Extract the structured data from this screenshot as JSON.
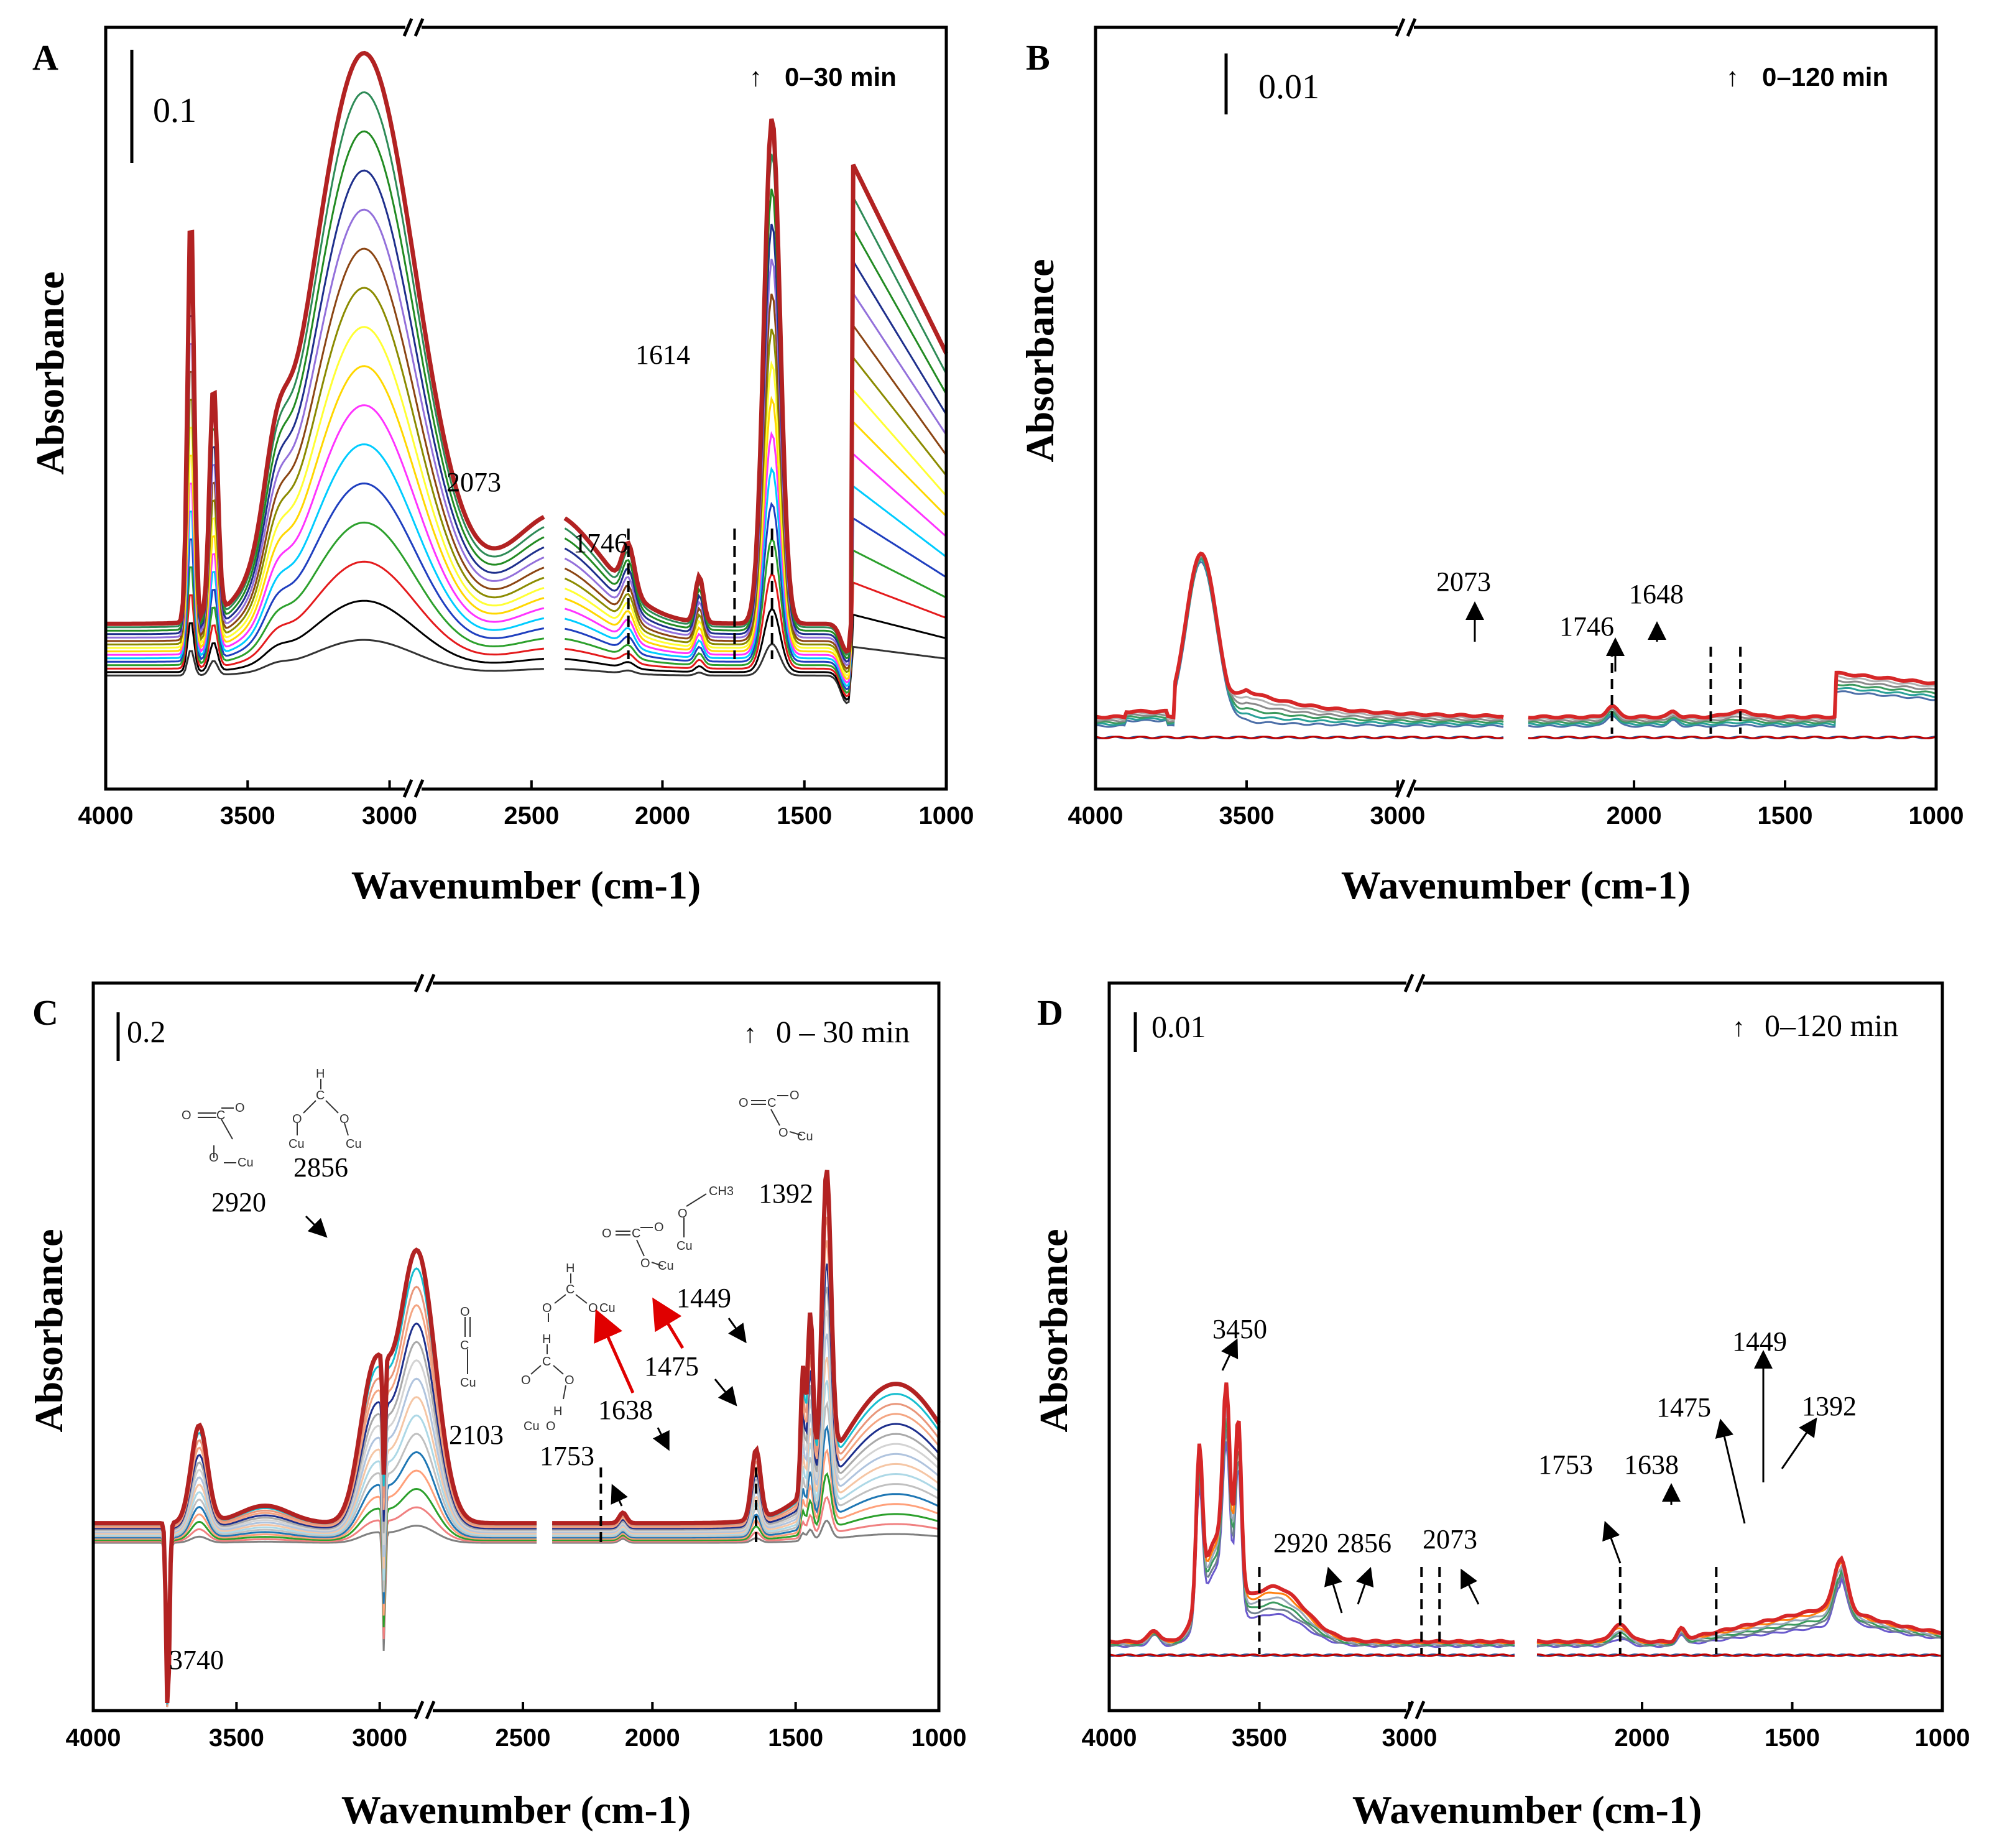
{
  "figure": {
    "y_axis_label": "Absorbance",
    "time_arrow_glyph": "↑"
  },
  "chart_data": [
    {
      "panel": "A",
      "type": "line",
      "title": "",
      "xlabel": "Wavenumber (cm-1)",
      "ylabel": "Absorbance",
      "xlim": [
        4000,
        1000
      ],
      "axis_break": [
        2450,
        2350
      ],
      "xticks": [
        4000,
        3500,
        3000,
        2500,
        2000,
        1500,
        1000
      ],
      "scale_bar": "0.1",
      "time_label": "0–30 min",
      "annotations": [
        "2073",
        "1746",
        "1614"
      ],
      "series_count": 16,
      "final_series_color": "#b22222",
      "marked_peaks": [
        2120,
        1746,
        1614
      ]
    },
    {
      "panel": "B",
      "type": "line",
      "title": "",
      "xlabel": "Wavenumber (cm-1)",
      "ylabel": "Absorbance",
      "xlim": [
        4000,
        1000
      ],
      "axis_break": [
        2650,
        2350
      ],
      "xticks": [
        4000,
        3500,
        3000,
        2000,
        1500,
        1000
      ],
      "scale_bar": "0.01",
      "time_label": "0–120 min",
      "annotations": [
        "2073",
        "1746",
        "1648"
      ],
      "series_count": 8,
      "final_series_color": "#d62728",
      "marked_peaks": [
        2073,
        1746,
        1648
      ]
    },
    {
      "panel": "C",
      "type": "line",
      "title": "",
      "xlabel": "Wavenumber (cm-1)",
      "ylabel": "Absorbance",
      "xlim": [
        4000,
        1000
      ],
      "axis_break": [
        2450,
        2350
      ],
      "xticks": [
        4000,
        3500,
        3000,
        2500,
        2000,
        1500,
        1000
      ],
      "scale_bar": "0.2",
      "time_label": "0 – 30 min",
      "annotations": [
        "3740",
        "2920",
        "2856",
        "2103",
        "1753",
        "1638",
        "1475",
        "1449",
        "1392"
      ],
      "structure_labels": [
        "O",
        "C",
        "Cu",
        "H",
        "CH3"
      ],
      "series_count": 16,
      "final_series_color": "#b22222",
      "marked_peaks": [
        2180,
        1638
      ]
    },
    {
      "panel": "D",
      "type": "line",
      "title": "",
      "xlabel": "Wavenumber (cm-1)",
      "ylabel": "Absorbance",
      "xlim": [
        4000,
        1000
      ],
      "axis_break": [
        2650,
        2350
      ],
      "xticks": [
        4000,
        3500,
        3000,
        2000,
        1500,
        1000
      ],
      "scale_bar": "0.01",
      "time_label": "0–120 min",
      "annotations": [
        "3450",
        "2920",
        "2856",
        "2073",
        "1753",
        "1638",
        "1475",
        "1449",
        "1392"
      ],
      "series_count": 8,
      "final_series_color": "#d62728",
      "marked_peaks": [
        3500,
        2960,
        2900,
        2073,
        1753
      ]
    }
  ]
}
